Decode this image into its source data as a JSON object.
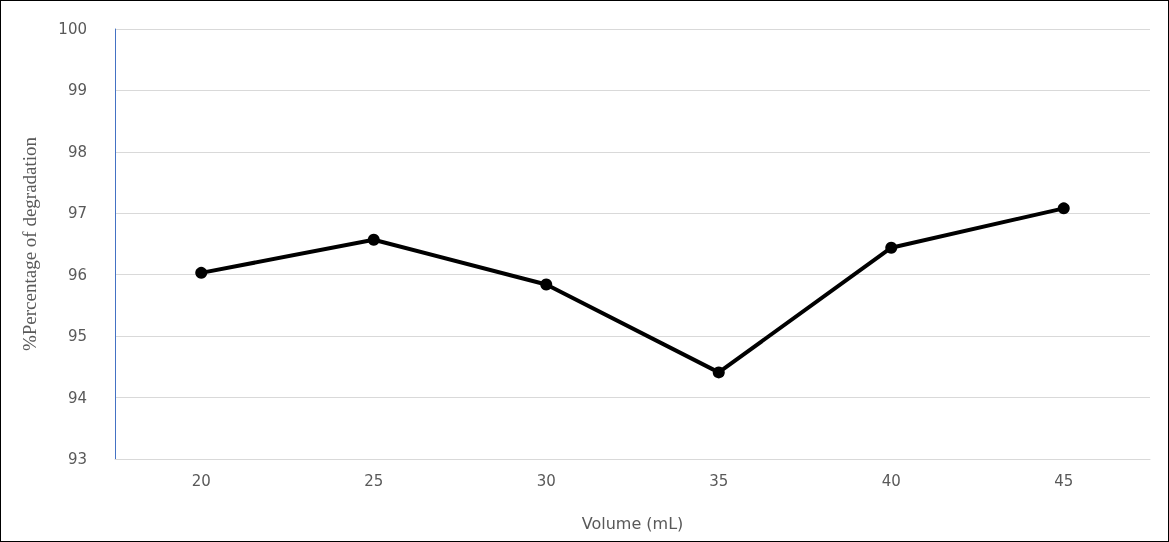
{
  "chart_data": {
    "type": "line",
    "xlabel": "Volume (mL)",
    "ylabel": "%Percentage of degradation",
    "categories": [
      "20",
      "25",
      "30",
      "35",
      "40",
      "45"
    ],
    "series": [
      {
        "color": "#000000",
        "values": [
          96.03,
          96.57,
          95.84,
          94.41,
          96.44,
          97.08
        ]
      }
    ],
    "ylim": [
      93,
      100
    ],
    "yticks": [
      93,
      94,
      95,
      96,
      97,
      98,
      99,
      100
    ],
    "grid": "y",
    "marker": "circle",
    "line_style": "solid"
  }
}
